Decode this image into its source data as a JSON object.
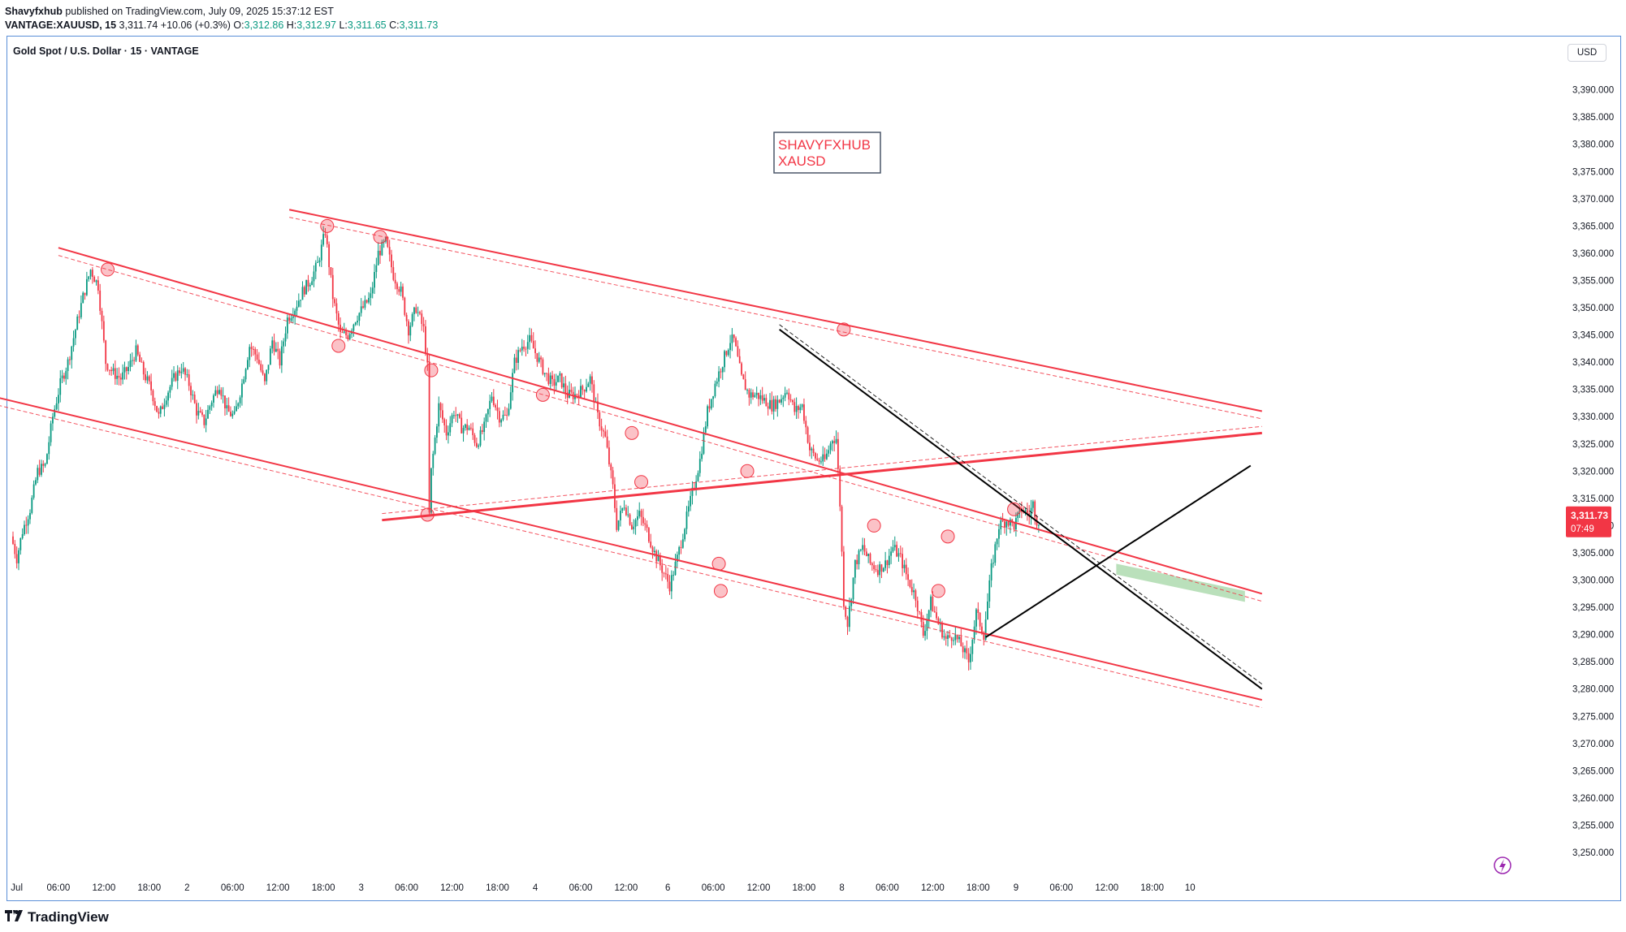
{
  "header": {
    "author": "Shavyfxhub",
    "published": " published on TradingView.com, July 09, 2025 15:37:12 EST"
  },
  "ohlc": {
    "symbol": "VANTAGE:XAUUSD, 15",
    "last": "3,311.74",
    "change": "+10.06 (+0.3%)",
    "o_label": "O:",
    "o": "3,312.86",
    "h_label": "H:",
    "h": "3,312.97",
    "l_label": "L:",
    "l": "3,311.65",
    "c_label": "C:",
    "c": "3,311.73"
  },
  "chart_title": "Gold Spot / U.S. Dollar · 15 · VANTAGE",
  "currency": "USD",
  "footer": {
    "brand": "TradingView"
  },
  "colors": {
    "bull": "#089981",
    "bear": "#f23645",
    "trend": "#f23645",
    "black_line": "#000000",
    "zone": "#81c784"
  },
  "chart_data": {
    "type": "candlestick",
    "title": "Gold Spot / U.S. Dollar · 15 · VANTAGE",
    "ylim": [
      3246,
      3405
    ],
    "y_ticks": [
      3250,
      3255,
      3260,
      3265,
      3270,
      3275,
      3280,
      3285,
      3290,
      3295,
      3300,
      3305,
      3310,
      3315,
      3320,
      3325,
      3330,
      3335,
      3340,
      3345,
      3350,
      3355,
      3360,
      3365,
      3370,
      3375,
      3380,
      3385,
      3390
    ],
    "x_ticks": [
      {
        "label": "Jul",
        "bar": 2
      },
      {
        "label": "06:00",
        "bar": 24
      },
      {
        "label": "12:00",
        "bar": 48
      },
      {
        "label": "18:00",
        "bar": 72
      },
      {
        "label": "2",
        "bar": 92
      },
      {
        "label": "06:00",
        "bar": 116
      },
      {
        "label": "12:00",
        "bar": 140
      },
      {
        "label": "18:00",
        "bar": 164
      },
      {
        "label": "3",
        "bar": 184
      },
      {
        "label": "06:00",
        "bar": 208
      },
      {
        "label": "12:00",
        "bar": 232
      },
      {
        "label": "18:00",
        "bar": 256
      },
      {
        "label": "4",
        "bar": 276
      },
      {
        "label": "06:00",
        "bar": 300
      },
      {
        "label": "12:00",
        "bar": 324
      },
      {
        "label": "6",
        "bar": 346
      },
      {
        "label": "06:00",
        "bar": 370
      },
      {
        "label": "12:00",
        "bar": 394
      },
      {
        "label": "18:00",
        "bar": 418
      },
      {
        "label": "8",
        "bar": 438
      },
      {
        "label": "06:00",
        "bar": 462
      },
      {
        "label": "12:00",
        "bar": 486
      },
      {
        "label": "18:00",
        "bar": 510
      },
      {
        "label": "9",
        "bar": 530
      },
      {
        "label": "06:00",
        "bar": 554
      },
      {
        "label": "12:00",
        "bar": 578
      },
      {
        "label": "18:00",
        "bar": 602
      },
      {
        "label": "10",
        "bar": 622
      }
    ],
    "last_price": "3,311.73",
    "countdown": "07:49",
    "annotation": [
      "SHAVYFXHUB",
      "XAUSD"
    ],
    "price_path": [
      [
        0,
        3308
      ],
      [
        3,
        3304
      ],
      [
        6,
        3309
      ],
      [
        10,
        3313
      ],
      [
        14,
        3320
      ],
      [
        18,
        3321
      ],
      [
        22,
        3330
      ],
      [
        26,
        3336
      ],
      [
        30,
        3340
      ],
      [
        34,
        3346
      ],
      [
        38,
        3352
      ],
      [
        42,
        3357
      ],
      [
        46,
        3354
      ],
      [
        50,
        3340
      ],
      [
        54,
        3338
      ],
      [
        58,
        3337
      ],
      [
        62,
        3339
      ],
      [
        66,
        3342
      ],
      [
        70,
        3338
      ],
      [
        74,
        3335
      ],
      [
        78,
        3330
      ],
      [
        82,
        3334
      ],
      [
        86,
        3337
      ],
      [
        90,
        3339
      ],
      [
        94,
        3336
      ],
      [
        98,
        3331
      ],
      [
        102,
        3329
      ],
      [
        106,
        3333
      ],
      [
        110,
        3336
      ],
      [
        114,
        3331
      ],
      [
        118,
        3330
      ],
      [
        122,
        3336
      ],
      [
        126,
        3343
      ],
      [
        130,
        3341
      ],
      [
        134,
        3336
      ],
      [
        138,
        3344
      ],
      [
        142,
        3340
      ],
      [
        146,
        3348
      ],
      [
        150,
        3350
      ],
      [
        154,
        3353
      ],
      [
        158,
        3355
      ],
      [
        162,
        3358
      ],
      [
        166,
        3364
      ],
      [
        170,
        3352
      ],
      [
        174,
        3345
      ],
      [
        178,
        3345
      ],
      [
        182,
        3348
      ],
      [
        186,
        3350
      ],
      [
        190,
        3352
      ],
      [
        194,
        3360
      ],
      [
        198,
        3362
      ],
      [
        202,
        3356
      ],
      [
        206,
        3353
      ],
      [
        210,
        3346
      ],
      [
        214,
        3350
      ],
      [
        218,
        3346
      ],
      [
        220,
        3339
      ],
      [
        221,
        3312
      ],
      [
        222,
        3320
      ],
      [
        226,
        3332
      ],
      [
        230,
        3327
      ],
      [
        234,
        3331
      ],
      [
        238,
        3328
      ],
      [
        242,
        3328
      ],
      [
        246,
        3325
      ],
      [
        250,
        3328
      ],
      [
        254,
        3334
      ],
      [
        258,
        3330
      ],
      [
        262,
        3330
      ],
      [
        266,
        3340
      ],
      [
        270,
        3343
      ],
      [
        274,
        3344
      ],
      [
        278,
        3341
      ],
      [
        282,
        3338
      ],
      [
        286,
        3336
      ],
      [
        290,
        3337
      ],
      [
        294,
        3334
      ],
      [
        298,
        3334
      ],
      [
        302,
        3335
      ],
      [
        306,
        3337
      ],
      [
        310,
        3330
      ],
      [
        314,
        3326
      ],
      [
        318,
        3317
      ],
      [
        320,
        3310
      ],
      [
        324,
        3314
      ],
      [
        328,
        3310
      ],
      [
        332,
        3312
      ],
      [
        336,
        3309
      ],
      [
        340,
        3305
      ],
      [
        344,
        3302
      ],
      [
        348,
        3299
      ],
      [
        352,
        3304
      ],
      [
        356,
        3310
      ],
      [
        360,
        3316
      ],
      [
        364,
        3322
      ],
      [
        368,
        3331
      ],
      [
        372,
        3336
      ],
      [
        376,
        3340
      ],
      [
        380,
        3344
      ],
      [
        382,
        3344
      ],
      [
        386,
        3337
      ],
      [
        390,
        3334
      ],
      [
        394,
        3334
      ],
      [
        398,
        3333
      ],
      [
        402,
        3332
      ],
      [
        406,
        3333
      ],
      [
        410,
        3335
      ],
      [
        414,
        3331
      ],
      [
        418,
        3332
      ],
      [
        422,
        3324
      ],
      [
        426,
        3322
      ],
      [
        430,
        3322
      ],
      [
        434,
        3326
      ],
      [
        436,
        3326
      ],
      [
        438,
        3314
      ],
      [
        440,
        3296
      ],
      [
        442,
        3292
      ],
      [
        446,
        3303
      ],
      [
        450,
        3306
      ],
      [
        454,
        3303
      ],
      [
        458,
        3302
      ],
      [
        462,
        3303
      ],
      [
        466,
        3306
      ],
      [
        470,
        3304
      ],
      [
        474,
        3300
      ],
      [
        478,
        3297
      ],
      [
        482,
        3290
      ],
      [
        486,
        3296
      ],
      [
        490,
        3292
      ],
      [
        494,
        3289
      ],
      [
        498,
        3290
      ],
      [
        502,
        3288
      ],
      [
        506,
        3285
      ],
      [
        510,
        3294
      ],
      [
        514,
        3290
      ],
      [
        518,
        3302
      ],
      [
        522,
        3310
      ],
      [
        526,
        3311
      ],
      [
        530,
        3310
      ],
      [
        534,
        3313
      ],
      [
        538,
        3312
      ],
      [
        540,
        3314
      ],
      [
        542,
        3311
      ]
    ],
    "trendlines": [
      {
        "name": "upper-descending-channel",
        "from": [
          -8,
          3333.5
        ],
        "to": [
          660,
          3278
        ]
      },
      {
        "name": "mid-descending-line-1",
        "from": [
          24,
          3361
        ],
        "to": [
          660,
          3297.5
        ]
      },
      {
        "name": "upper-descending-line-2",
        "from": [
          146,
          3368
        ],
        "to": [
          660,
          3331
        ]
      },
      {
        "name": "ascending-line",
        "from": [
          195,
          3311
        ],
        "to": [
          660,
          3327
        ]
      },
      {
        "name": "black-ascending-line",
        "from": [
          514,
          3289.5
        ],
        "to": [
          654,
          3321
        ]
      },
      {
        "name": "black-descending-line",
        "from": [
          405,
          3346
        ],
        "to": [
          660,
          3280
        ]
      }
    ],
    "touch_points": [
      [
        50,
        3357
      ],
      [
        166,
        3365
      ],
      [
        172,
        3343
      ],
      [
        194,
        3363
      ],
      [
        219,
        3312
      ],
      [
        221,
        3338.5
      ],
      [
        280,
        3334
      ],
      [
        327,
        3327
      ],
      [
        332,
        3318
      ],
      [
        373,
        3303
      ],
      [
        374,
        3298
      ],
      [
        388,
        3320
      ],
      [
        439,
        3346
      ],
      [
        455,
        3310
      ],
      [
        489,
        3298
      ],
      [
        494,
        3308
      ],
      [
        529,
        3313
      ]
    ],
    "zone": {
      "name": "support-zone",
      "bars": [
        583,
        651
      ],
      "top": [
        3303,
        3298
      ],
      "bottom": [
        3301,
        3296
      ]
    }
  }
}
